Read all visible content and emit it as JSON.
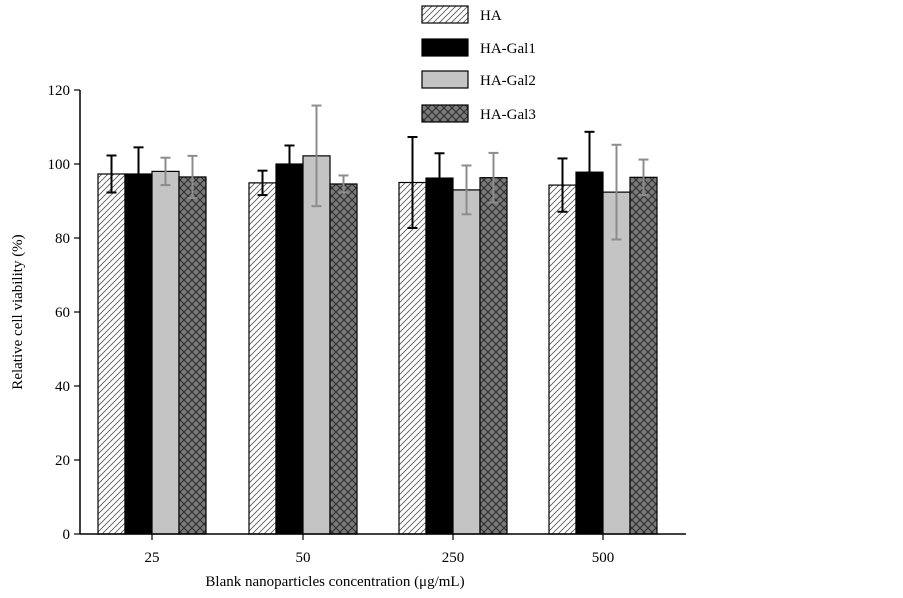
{
  "chart_data": {
    "type": "bar",
    "title": "",
    "xlabel": "Blank nanoparticles concentration (μg/mL)",
    "ylabel": "Relative cell viability (%)",
    "ylim": [
      0,
      120
    ],
    "yticks": [
      0,
      20,
      40,
      60,
      80,
      100,
      120
    ],
    "categories": [
      "25",
      "50",
      "250",
      "500"
    ],
    "series": [
      {
        "name": "HA",
        "values": [
          97.3,
          94.9,
          95.0,
          94.3
        ],
        "errors": [
          5.0,
          3.3,
          12.3,
          7.2
        ],
        "pattern": "diagonal-hatch"
      },
      {
        "name": "HA-Gal1",
        "values": [
          97.3,
          100.0,
          96.2,
          97.8
        ],
        "errors": [
          7.2,
          5.0,
          6.7,
          10.9
        ],
        "pattern": "solid-black"
      },
      {
        "name": "HA-Gal2",
        "values": [
          98.0,
          102.2,
          93.0,
          92.4
        ],
        "errors": [
          3.7,
          13.6,
          6.6,
          12.8
        ],
        "pattern": "solid-light-gray"
      },
      {
        "name": "HA-Gal3",
        "values": [
          96.5,
          94.6,
          96.3,
          96.4
        ],
        "errors": [
          5.7,
          2.3,
          6.7,
          4.8
        ],
        "pattern": "crosshatch-gray"
      }
    ],
    "legend_position": "top-right",
    "grid": false,
    "colors": {
      "HA": "#ffffff",
      "HA-Gal1": "#000000",
      "HA-Gal2": "#c4c4c4",
      "HA-Gal3": "#7a7a7a",
      "errbar_gray": "#8c8c8c"
    }
  }
}
